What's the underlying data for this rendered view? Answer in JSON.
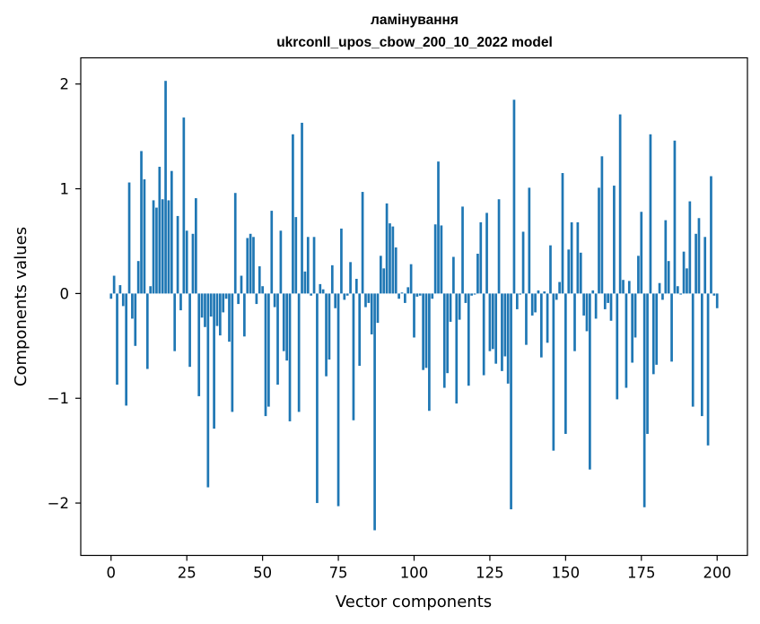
{
  "chart_data": {
    "type": "bar",
    "title": "ламінування",
    "subtitle": "ukrconll_upos_cbow_200_10_2022 model",
    "xlabel": "Vector components",
    "ylabel": "Components values",
    "xlim": [
      -10,
      210
    ],
    "ylim": [
      -2.5,
      2.25
    ],
    "xticks": [
      0,
      25,
      50,
      75,
      100,
      125,
      150,
      175,
      200
    ],
    "xtick_labels": [
      "0",
      "25",
      "50",
      "75",
      "100",
      "125",
      "150",
      "175",
      "200"
    ],
    "yticks": [
      -2,
      -1,
      0,
      1,
      2
    ],
    "ytick_labels": [
      "−2",
      "−1",
      "0",
      "1",
      "2"
    ],
    "grid": false,
    "bar_color": "#1f77b4",
    "values": [
      -0.05,
      0.17,
      -0.87,
      0.08,
      -0.12,
      -1.07,
      1.06,
      -0.24,
      -0.5,
      0.31,
      1.36,
      1.09,
      -0.72,
      0.07,
      0.89,
      0.82,
      1.21,
      0.9,
      2.03,
      0.89,
      1.17,
      -0.55,
      0.74,
      -0.16,
      1.68,
      0.6,
      -0.7,
      0.57,
      0.91,
      -0.98,
      -0.23,
      -0.32,
      -1.85,
      -0.22,
      -1.29,
      -0.31,
      -0.4,
      -0.18,
      -0.05,
      -0.46,
      -1.13,
      0.96,
      -0.1,
      0.17,
      -0.41,
      0.53,
      0.57,
      0.54,
      -0.1,
      0.26,
      0.07,
      -1.17,
      -1.08,
      0.79,
      -0.13,
      -0.87,
      0.6,
      -0.55,
      -0.64,
      -1.22,
      1.52,
      0.73,
      -1.13,
      1.63,
      0.21,
      0.54,
      -0.02,
      0.54,
      -2.0,
      0.09,
      0.04,
      -0.79,
      -0.63,
      0.27,
      -0.14,
      -2.03,
      0.62,
      -0.06,
      -0.02,
      0.3,
      -1.21,
      0.14,
      -0.69,
      0.97,
      -0.13,
      -0.09,
      -0.39,
      -2.26,
      -0.28,
      0.36,
      0.24,
      0.86,
      0.67,
      0.64,
      0.44,
      -0.05,
      0.01,
      -0.09,
      0.06,
      0.28,
      -0.42,
      -0.03,
      -0.02,
      -0.73,
      -0.71,
      -1.12,
      -0.05,
      0.66,
      1.26,
      0.65,
      -0.9,
      -0.76,
      -0.27,
      0.35,
      -1.05,
      -0.25,
      0.83,
      -0.09,
      -0.88,
      -0.02,
      -0.01,
      0.38,
      0.68,
      -0.78,
      0.77,
      -0.55,
      -0.53,
      -0.67,
      0.9,
      -0.74,
      -0.6,
      -0.86,
      -2.06,
      1.85,
      -0.15,
      -0.01,
      0.59,
      -0.49,
      1.01,
      -0.21,
      -0.18,
      0.03,
      -0.61,
      0.02,
      -0.47,
      0.46,
      -1.5,
      -0.06,
      0.11,
      1.15,
      -1.34,
      0.42,
      0.68,
      -0.55,
      0.68,
      0.39,
      -0.21,
      -0.36,
      -1.68,
      0.03,
      -0.24,
      1.01,
      1.31,
      -0.15,
      -0.09,
      -0.26,
      1.03,
      -1.01,
      1.71,
      0.13,
      -0.9,
      0.12,
      -0.66,
      -0.42,
      0.36,
      0.78,
      -2.04,
      -1.34,
      1.52,
      -0.77,
      -0.68,
      0.1,
      -0.06,
      0.7,
      0.31,
      -0.65,
      1.46,
      0.07,
      -0.01,
      0.4,
      0.24,
      0.88,
      -1.08,
      0.57,
      0.72,
      -1.17,
      0.54,
      -1.45,
      1.12,
      -0.02,
      -0.14
    ]
  }
}
